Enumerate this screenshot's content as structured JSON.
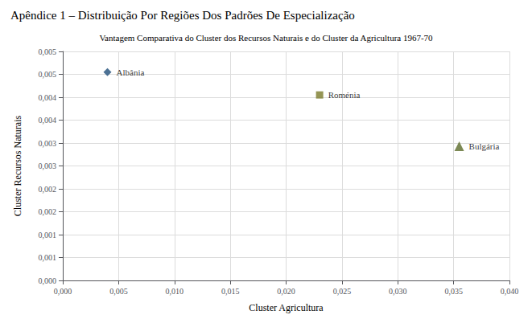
{
  "chart_data": {
    "type": "scatter",
    "subtitle": "Apêndice 1 – Distribuição Por Regiões Dos Padrões De Especialização",
    "title": "Vantagem Comparativa do Cluster dos Recursos Naturais e do Cluster da Agricultura 1967-70",
    "x_label": "Cluster Agricultura",
    "y_label": "Cluster Recursos Naturais",
    "series": [
      {
        "name": "Albânia",
        "color": "#1F4E79",
        "marker": "diamond",
        "x": [
          0.004
        ],
        "values": [
          0.00455
        ]
      },
      {
        "name": "Roménia",
        "color": "#7B7B2A",
        "marker": "square",
        "x": [
          0.023
        ],
        "values": [
          0.00405
        ]
      },
      {
        "name": "Bulgária",
        "color": "#5B6B2A",
        "marker": "triangle",
        "x": [
          0.0355
        ],
        "values": [
          0.00293
        ]
      }
    ],
    "xlim": [
      0.0,
      0.04
    ],
    "ylim": [
      0.0,
      0.005
    ],
    "xticks": [
      {
        "value": 0.0,
        "label": "0,000"
      },
      {
        "value": 0.005,
        "label": "0,005"
      },
      {
        "value": 0.01,
        "label": "0,010"
      },
      {
        "value": 0.015,
        "label": "0,015"
      },
      {
        "value": 0.02,
        "label": "0,020"
      },
      {
        "value": 0.025,
        "label": "0,025"
      },
      {
        "value": 0.03,
        "label": "0,030"
      },
      {
        "value": 0.035,
        "label": "0,035"
      },
      {
        "value": 0.04,
        "label": "0,040"
      }
    ],
    "yticks": [
      {
        "value": 0.0,
        "label": "0,000"
      },
      {
        "value": 0.0005,
        "label": "0,001"
      },
      {
        "value": 0.001,
        "label": "0,001"
      },
      {
        "value": 0.0015,
        "label": "0,002"
      },
      {
        "value": 0.002,
        "label": "0,002"
      },
      {
        "value": 0.0025,
        "label": "0,003"
      },
      {
        "value": 0.003,
        "label": "0,003"
      },
      {
        "value": 0.0035,
        "label": "0,004"
      },
      {
        "value": 0.004,
        "label": "0,004"
      },
      {
        "value": 0.0045,
        "label": "0,005"
      },
      {
        "value": 0.005,
        "label": "0,005"
      }
    ],
    "grid": true
  }
}
